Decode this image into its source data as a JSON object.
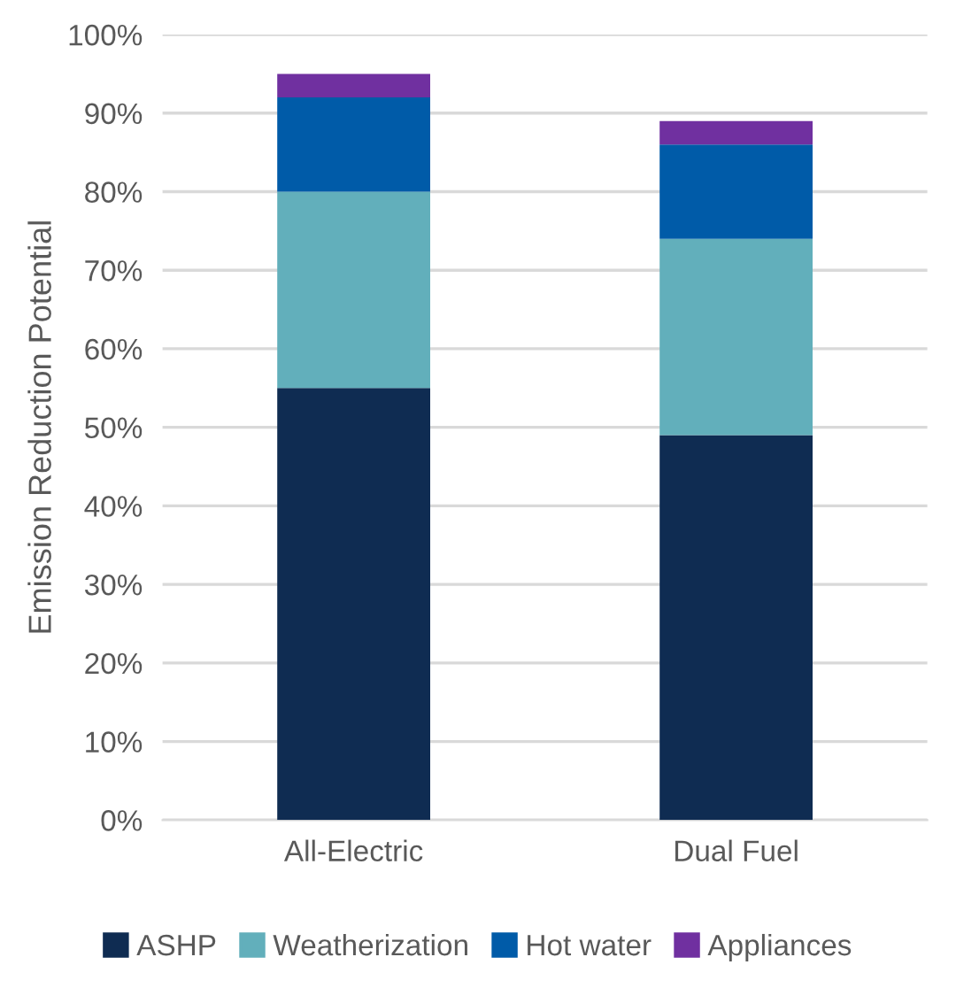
{
  "chart_data": {
    "type": "bar",
    "stacked": true,
    "ylabel": "Emission Reduction Potential",
    "categories": [
      "All-Electric",
      "Dual Fuel"
    ],
    "series": [
      {
        "name": "ASHP",
        "color": "#0f2c52",
        "values": [
          55,
          49
        ]
      },
      {
        "name": "Weatherization",
        "color": "#62afbb",
        "values": [
          25,
          25
        ]
      },
      {
        "name": "Hot water",
        "color": "#005ba8",
        "values": [
          12,
          12
        ]
      },
      {
        "name": "Appliances",
        "color": "#7030a0",
        "values": [
          3,
          3
        ]
      }
    ],
    "ylim": [
      0,
      100
    ],
    "yticks": [
      {
        "value": 0,
        "label": "0%"
      },
      {
        "value": 10,
        "label": "10%"
      },
      {
        "value": 20,
        "label": "20%"
      },
      {
        "value": 30,
        "label": "30%"
      },
      {
        "value": 40,
        "label": "40%"
      },
      {
        "value": 50,
        "label": "50%"
      },
      {
        "value": 60,
        "label": "60%"
      },
      {
        "value": 70,
        "label": "70%"
      },
      {
        "value": 80,
        "label": "80%"
      },
      {
        "value": 90,
        "label": "90%"
      },
      {
        "value": 100,
        "label": "100%"
      }
    ],
    "grid": "y",
    "legend": "bottom"
  }
}
